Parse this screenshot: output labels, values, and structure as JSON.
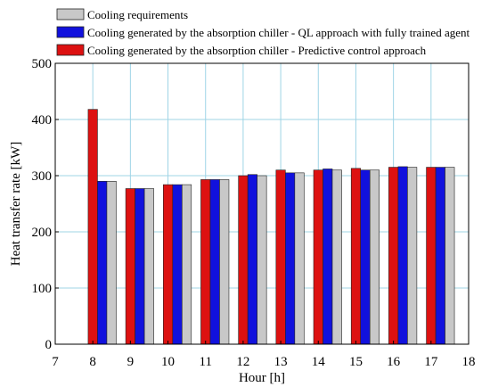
{
  "chart_data": {
    "type": "bar",
    "xlabel": "Hour [h]",
    "ylabel": "Heat transfer rate [kW]",
    "xlim": [
      7,
      18
    ],
    "ylim": [
      0,
      500
    ],
    "x_ticks": [
      7,
      8,
      9,
      10,
      11,
      12,
      13,
      14,
      15,
      16,
      17,
      18
    ],
    "y_ticks": [
      0,
      100,
      200,
      300,
      400,
      500
    ],
    "grid": true,
    "legend_position": "top-left",
    "categories": [
      8,
      9,
      10,
      11,
      12,
      13,
      14,
      15,
      16,
      17
    ],
    "series": [
      {
        "name": "Cooling generated by the absorption chiller - Predictive control approach",
        "color": "#dd1111",
        "values": [
          418,
          277,
          284,
          293,
          300,
          310,
          310,
          313,
          315,
          315
        ]
      },
      {
        "name": "Cooling generated by the absorption chiller - QL approach with fully trained agent",
        "color": "#1111dd",
        "values": [
          290,
          277,
          284,
          293,
          302,
          305,
          312,
          310,
          316,
          315
        ]
      },
      {
        "name": "Cooling requirements",
        "color": "#c8c8c8",
        "values": [
          290,
          277,
          284,
          293,
          300,
          305,
          310,
          310,
          315,
          315
        ]
      }
    ],
    "legend_order": [
      2,
      1,
      0
    ]
  }
}
